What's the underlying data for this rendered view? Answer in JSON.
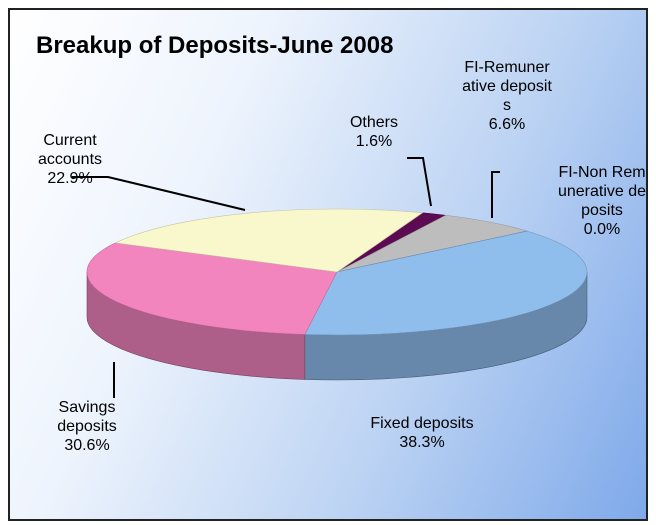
{
  "chart_data": {
    "type": "pie",
    "title": "Breakup of Deposits-June 2008",
    "categories": [
      "Others",
      "FI-Remunerative deposits",
      "FI-Non Remunerative deposits",
      "Fixed deposits",
      "Savings deposits",
      "Current accounts"
    ],
    "values": [
      1.6,
      6.6,
      0.0,
      38.3,
      30.6,
      22.9
    ],
    "value_labels": [
      "1.6%",
      "6.6%",
      "0.0%",
      "38.3%",
      "30.6%",
      "22.9%"
    ],
    "colors": [
      "#5c0a52",
      "#bdbdbd",
      "#3a5fa8",
      "#8fbdec",
      "#f284be",
      "#f8f8cc"
    ]
  }
}
